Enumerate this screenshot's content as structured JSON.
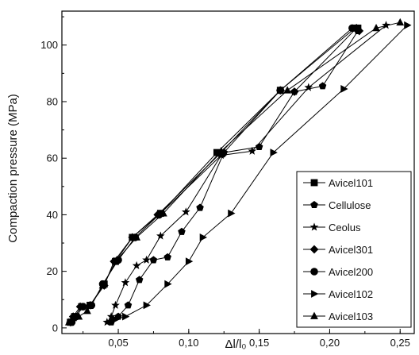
{
  "chart_data": {
    "type": "line",
    "xlabel": "Δl/l₀",
    "ylabel": "Compaction pressure (MPa)",
    "xlim": [
      0.01,
      0.26
    ],
    "ylim": [
      -2,
      112
    ],
    "x_ticks": [
      0.05,
      0.1,
      0.15,
      0.2,
      0.25
    ],
    "x_tick_labels": [
      "0,05",
      "0,10",
      "0,15",
      "0,20",
      "0,25"
    ],
    "y_ticks": [
      0,
      20,
      40,
      60,
      80,
      100
    ],
    "y_tick_labels": [
      "0",
      "20",
      "40",
      "60",
      "80",
      "100"
    ],
    "grid": false,
    "legend_position": "right",
    "series": [
      {
        "name": "Avicel101",
        "marker": "square",
        "x": [
          0.016,
          0.019,
          0.024,
          0.03,
          0.04,
          0.048,
          0.06,
          0.08,
          0.12,
          0.165,
          0.218,
          0.22
        ],
        "y": [
          2,
          4,
          7.5,
          8,
          15.5,
          23.5,
          32,
          40.5,
          62,
          84,
          106,
          106
        ]
      },
      {
        "name": "Cellulose",
        "marker": "pentagon",
        "x": [
          0.045,
          0.05,
          0.057,
          0.065,
          0.075,
          0.085,
          0.095,
          0.108,
          0.125,
          0.15,
          0.175,
          0.195,
          0.22
        ],
        "y": [
          2,
          4,
          8,
          17,
          24,
          25,
          34,
          42.5,
          62,
          64,
          83.5,
          85.5,
          105
        ]
      },
      {
        "name": "Ceolus",
        "marker": "star",
        "x": [
          0.042,
          0.045,
          0.048,
          0.055,
          0.063,
          0.07,
          0.08,
          0.098,
          0.123,
          0.145,
          0.185,
          0.24
        ],
        "y": [
          2,
          4,
          8,
          16,
          22,
          24,
          32.5,
          41,
          61,
          62.5,
          85,
          107
        ]
      },
      {
        "name": "Avicel301",
        "marker": "diamond",
        "x": [
          0.016,
          0.018,
          0.023,
          0.03,
          0.04,
          0.047,
          0.06,
          0.078,
          0.122,
          0.165,
          0.175,
          0.219,
          0.221
        ],
        "y": [
          2,
          4,
          7.5,
          8,
          15,
          23.5,
          32,
          40,
          61.5,
          84,
          83.5,
          106,
          105
        ]
      },
      {
        "name": "Avicel200",
        "marker": "circle",
        "x": [
          0.017,
          0.02,
          0.025,
          0.031,
          0.039,
          0.05,
          0.062,
          0.079,
          0.124,
          0.165,
          0.216
        ],
        "y": [
          2,
          4,
          7.5,
          8,
          15.5,
          24,
          32,
          40,
          61.5,
          84,
          106
        ]
      },
      {
        "name": "Avicel102",
        "marker": "triangle-right",
        "x": [
          0.048,
          0.055,
          0.07,
          0.085,
          0.1,
          0.11,
          0.13,
          0.16,
          0.21,
          0.255
        ],
        "y": [
          3,
          4,
          8,
          15.5,
          23.5,
          32,
          40.5,
          62,
          84.5,
          107
        ]
      },
      {
        "name": "Avicel103",
        "marker": "triangle-up",
        "x": [
          0.015,
          0.018,
          0.022,
          0.028,
          0.039,
          0.049,
          0.063,
          0.082,
          0.123,
          0.17,
          0.233,
          0.25
        ],
        "y": [
          2,
          3.5,
          4,
          6,
          15,
          24,
          32,
          40.5,
          62.5,
          84,
          106,
          108
        ]
      }
    ]
  }
}
